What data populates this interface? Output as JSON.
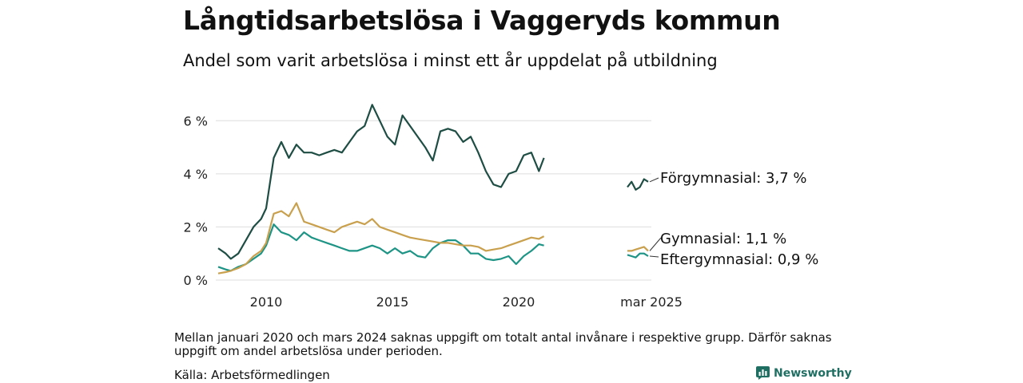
{
  "title": "Långtidsarbetslösa i Vaggeryds kommun",
  "subtitle": "Andel som varit arbetslösa i minst ett år uppdelat på utbildning",
  "note": "Mellan januari 2020 och mars 2024 saknas uppgift om totalt antal invånare i respektive grupp. Därför saknas uppgift om andel arbetslösa under perioden.",
  "source": "Källa: Arbetsförmedlingen",
  "brand": "Newsworthy",
  "colors": {
    "forgymnasial": "#1e4d43",
    "gymnasial": "#c9a04d",
    "eftergymnasial": "#1d9485",
    "grid": "#dddddd"
  },
  "chart_data": {
    "type": "line",
    "ylim": [
      0,
      7
    ],
    "yticks": [
      0,
      2,
      4,
      6
    ],
    "ytick_labels": [
      "0 %",
      "2 %",
      "4 %",
      "6 %"
    ],
    "xticks": [
      2010,
      2015,
      2020
    ],
    "xtick_labels": [
      "2010",
      "2015",
      "2020"
    ],
    "end_period_label": "mar 2025",
    "grid": true,
    "series": [
      {
        "name": "Förgymnasial",
        "end_label": "Förgymnasial: 3,7 %",
        "color": "#1e4d43",
        "x": [
          2008.1,
          2008.4,
          2008.6,
          2008.9,
          2009.2,
          2009.5,
          2009.8,
          2010.0,
          2010.3,
          2010.6,
          2010.9,
          2011.2,
          2011.5,
          2011.8,
          2012.1,
          2012.4,
          2012.7,
          2013.0,
          2013.3,
          2013.6,
          2013.9,
          2014.2,
          2014.5,
          2014.8,
          2015.1,
          2015.4,
          2015.7,
          2016.0,
          2016.3,
          2016.6,
          2016.9,
          2017.2,
          2017.5,
          2017.8,
          2018.1,
          2018.4,
          2018.7,
          2019.0,
          2019.3,
          2019.6,
          2019.9,
          2020.2,
          2020.5,
          2020.8,
          2021.0
        ],
        "values": [
          1.2,
          1.0,
          0.8,
          1.0,
          1.5,
          2.0,
          2.3,
          2.7,
          4.6,
          5.2,
          4.6,
          5.1,
          4.8,
          4.8,
          4.7,
          4.8,
          4.9,
          4.8,
          5.2,
          5.6,
          5.8,
          6.6,
          6.0,
          5.4,
          5.1,
          6.2,
          5.8,
          5.4,
          5.0,
          4.5,
          5.6,
          5.7,
          5.6,
          5.2,
          5.4,
          4.8,
          4.1,
          3.6,
          3.5,
          4.0,
          4.1,
          4.7,
          4.8,
          4.1,
          4.6
        ],
        "x2": [
          2024.2,
          2024.4,
          2024.6,
          2024.8,
          2025.0,
          2025.2
        ],
        "values2": [
          3.5,
          3.7,
          3.4,
          3.5,
          3.8,
          3.7
        ]
      },
      {
        "name": "Gymnasial",
        "end_label": "Gymnasial: 1,1 %",
        "color": "#c9a04d",
        "x": [
          2008.1,
          2008.4,
          2008.6,
          2008.9,
          2009.2,
          2009.5,
          2009.8,
          2010.0,
          2010.3,
          2010.6,
          2010.9,
          2011.2,
          2011.5,
          2011.8,
          2012.1,
          2012.4,
          2012.7,
          2013.0,
          2013.3,
          2013.6,
          2013.9,
          2014.2,
          2014.5,
          2014.8,
          2015.1,
          2015.4,
          2015.7,
          2016.0,
          2016.3,
          2016.6,
          2016.9,
          2017.2,
          2017.5,
          2017.8,
          2018.1,
          2018.4,
          2018.7,
          2019.0,
          2019.3,
          2019.6,
          2019.9,
          2020.2,
          2020.5,
          2020.8,
          2021.0
        ],
        "values": [
          0.25,
          0.3,
          0.35,
          0.45,
          0.6,
          0.9,
          1.1,
          1.4,
          2.5,
          2.6,
          2.4,
          2.9,
          2.2,
          2.1,
          2.0,
          1.9,
          1.8,
          2.0,
          2.1,
          2.2,
          2.1,
          2.3,
          2.0,
          1.9,
          1.8,
          1.7,
          1.6,
          1.55,
          1.5,
          1.45,
          1.4,
          1.4,
          1.35,
          1.3,
          1.3,
          1.25,
          1.1,
          1.15,
          1.2,
          1.3,
          1.4,
          1.5,
          1.6,
          1.55,
          1.65
        ],
        "x2": [
          2024.2,
          2024.4,
          2024.6,
          2024.8,
          2025.0,
          2025.2
        ],
        "values2": [
          1.1,
          1.1,
          1.15,
          1.2,
          1.25,
          1.1
        ]
      },
      {
        "name": "Eftergymnasial",
        "end_label": "Eftergymnasial: 0,9 %",
        "color": "#1d9485",
        "x": [
          2008.1,
          2008.4,
          2008.6,
          2008.9,
          2009.2,
          2009.5,
          2009.8,
          2010.0,
          2010.3,
          2010.6,
          2010.9,
          2011.2,
          2011.5,
          2011.8,
          2012.1,
          2012.4,
          2012.7,
          2013.0,
          2013.3,
          2013.6,
          2013.9,
          2014.2,
          2014.5,
          2014.8,
          2015.1,
          2015.4,
          2015.7,
          2016.0,
          2016.3,
          2016.6,
          2016.9,
          2017.2,
          2017.5,
          2017.8,
          2018.1,
          2018.4,
          2018.7,
          2019.0,
          2019.3,
          2019.6,
          2019.9,
          2020.2,
          2020.5,
          2020.8,
          2021.0
        ],
        "values": [
          0.5,
          0.4,
          0.35,
          0.5,
          0.6,
          0.8,
          1.0,
          1.3,
          2.1,
          1.8,
          1.7,
          1.5,
          1.8,
          1.6,
          1.5,
          1.4,
          1.3,
          1.2,
          1.1,
          1.1,
          1.2,
          1.3,
          1.2,
          1.0,
          1.2,
          1.0,
          1.1,
          0.9,
          0.85,
          1.2,
          1.4,
          1.5,
          1.5,
          1.3,
          1.0,
          1.0,
          0.8,
          0.75,
          0.8,
          0.9,
          0.6,
          0.9,
          1.1,
          1.35,
          1.3
        ],
        "x2": [
          2024.2,
          2024.4,
          2024.6,
          2024.8,
          2025.0,
          2025.2
        ],
        "values2": [
          0.95,
          0.9,
          0.85,
          1.0,
          1.0,
          0.9
        ]
      }
    ]
  }
}
